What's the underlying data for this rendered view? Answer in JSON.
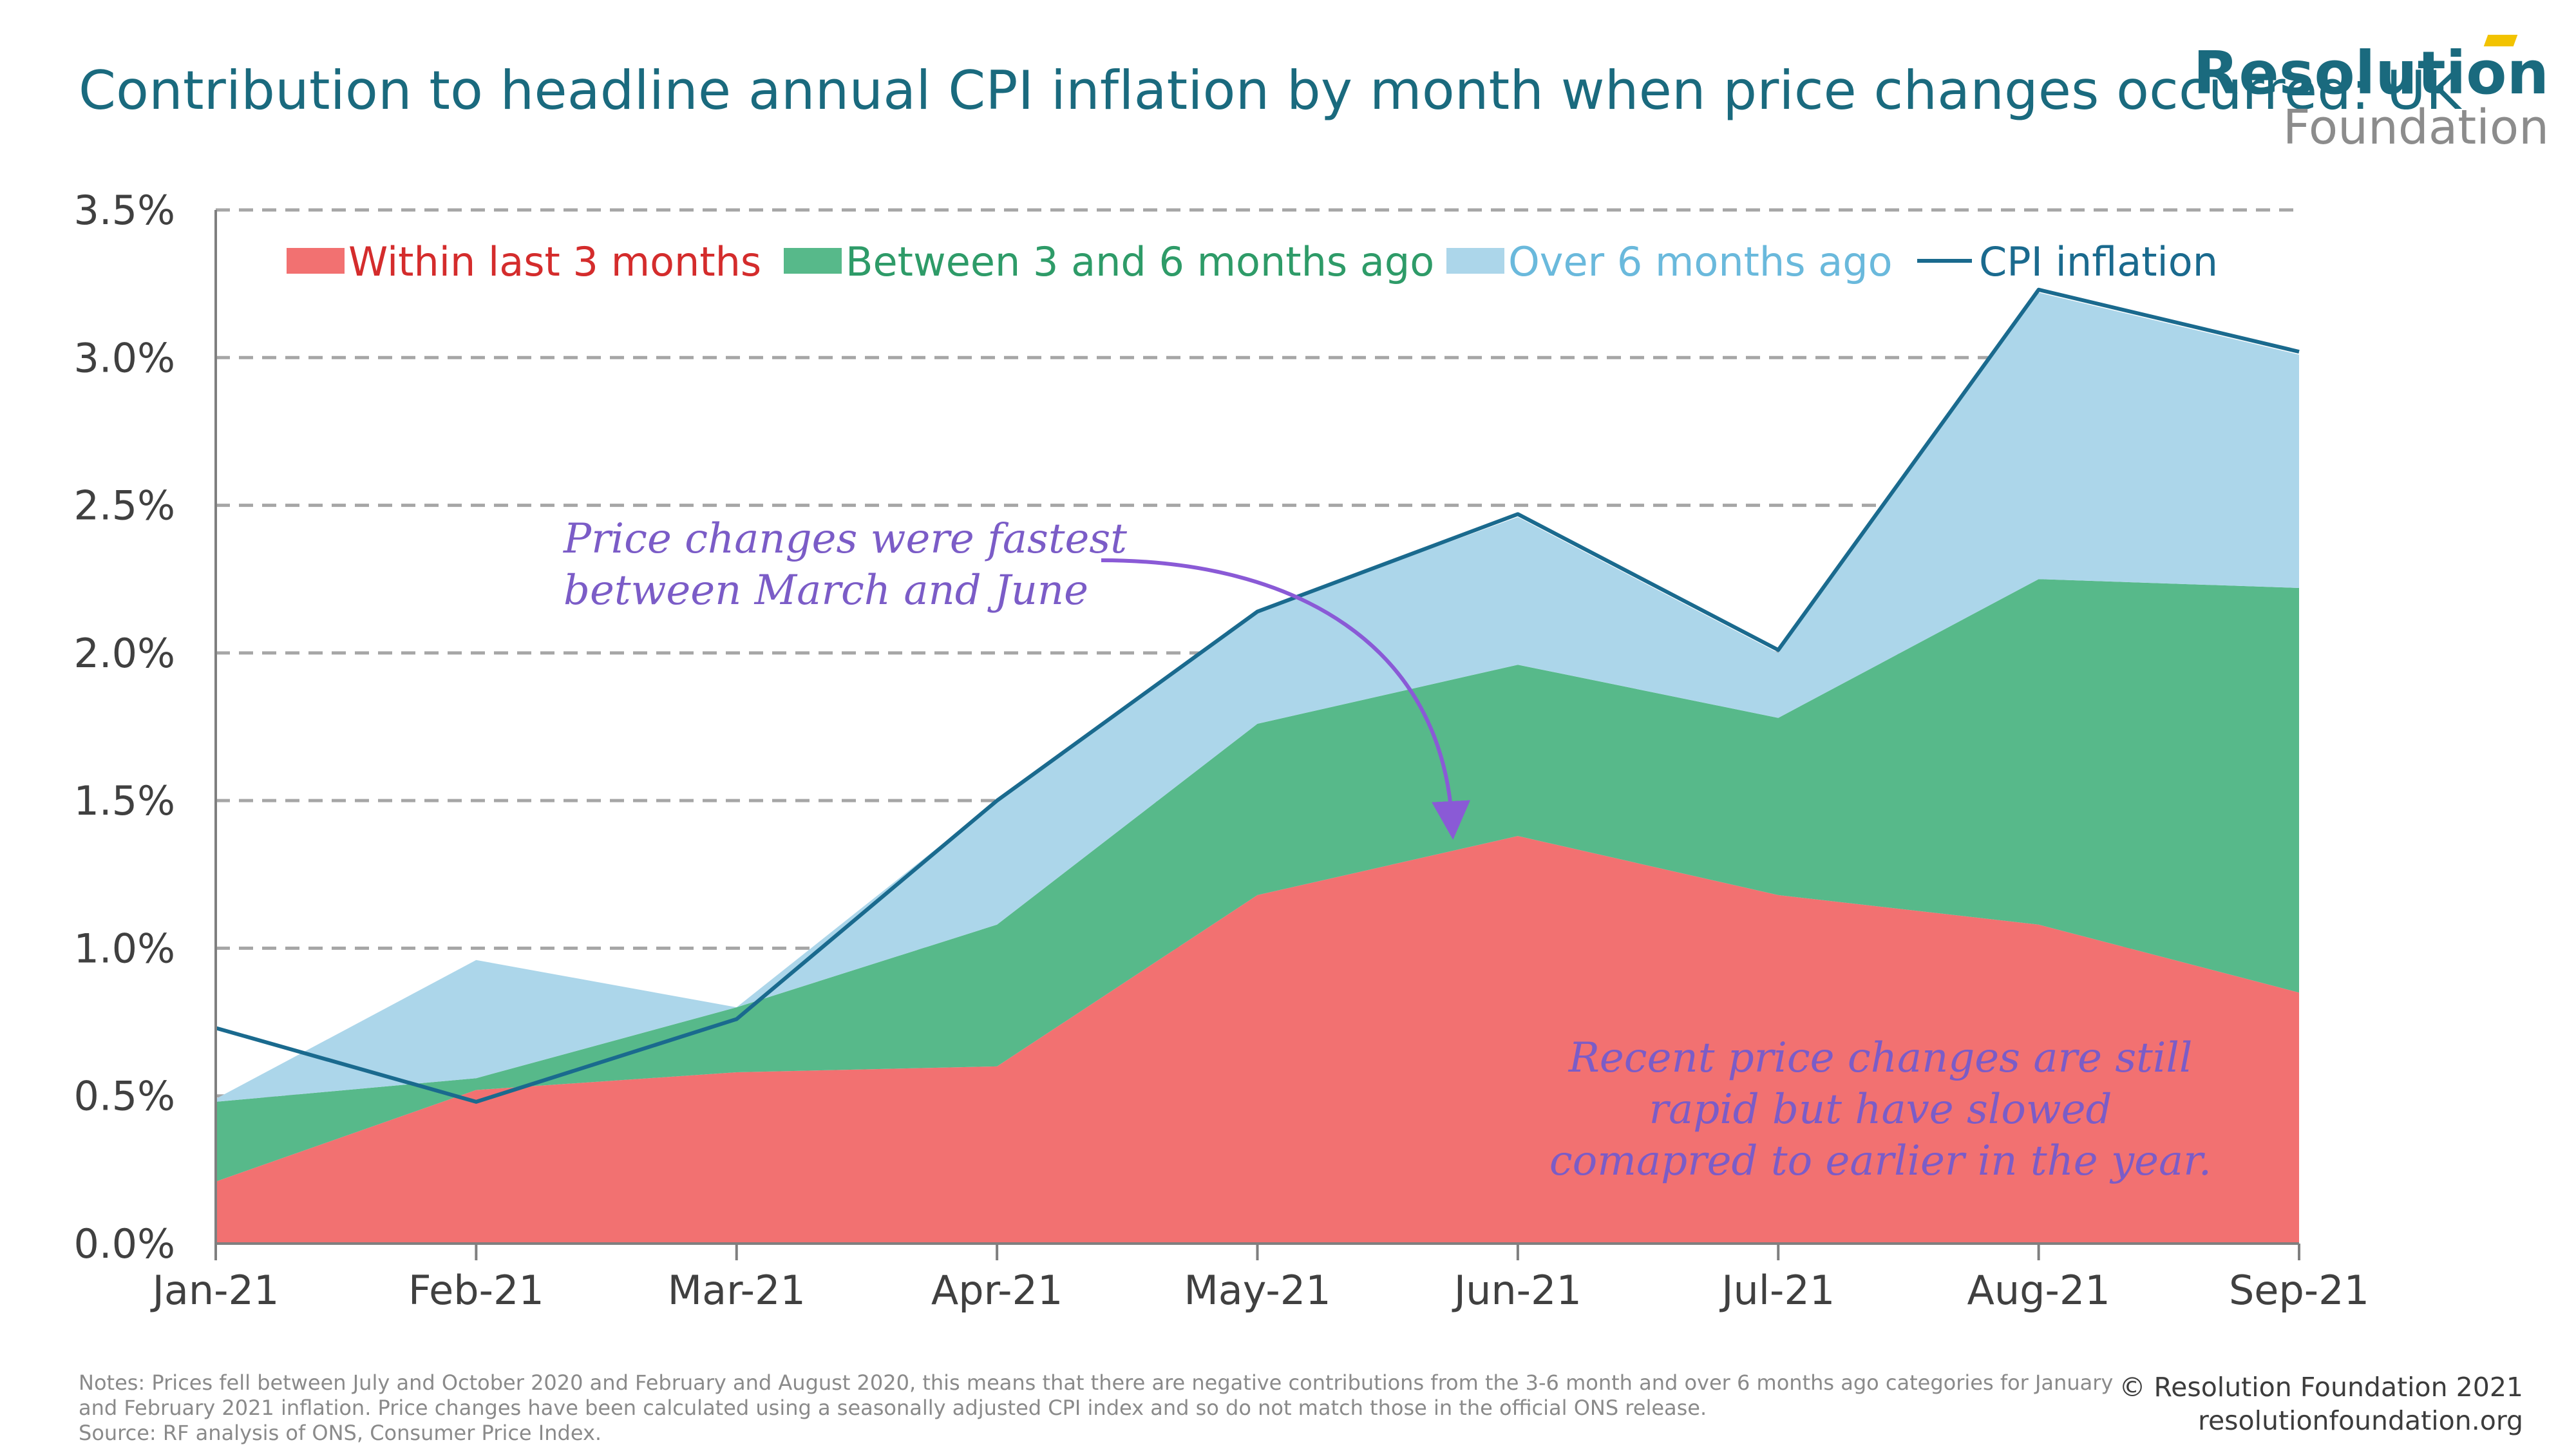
{
  "header": {
    "title": "Contribution to headline annual CPI inflation by month when price changes occurred: UK",
    "logo_main": "Resolution",
    "logo_sub": "Foundation"
  },
  "chart_data": {
    "type": "area",
    "title": "Contribution to headline annual CPI inflation by month when price changes occurred: UK",
    "xlabel": "",
    "ylabel": "",
    "categories": [
      "Jan-21",
      "Feb-21",
      "Mar-21",
      "Apr-21",
      "May-21",
      "Jun-21",
      "Jul-21",
      "Aug-21",
      "Sep-21"
    ],
    "ylim": [
      0,
      3.5
    ],
    "yticks": [
      0.0,
      0.5,
      1.0,
      1.5,
      2.0,
      2.5,
      3.0,
      3.5
    ],
    "ytick_labels": [
      "0.0%",
      "0.5%",
      "1.0%",
      "1.5%",
      "2.0%",
      "2.5%",
      "3.0%",
      "3.5%"
    ],
    "grid": "horizontal-dashed",
    "legend_position": "top",
    "series": [
      {
        "name": "Within last 3 months",
        "kind": "stacked-area",
        "color": "#f27171",
        "values": [
          0.21,
          0.52,
          0.58,
          0.6,
          1.18,
          1.38,
          1.18,
          1.08,
          0.85
        ]
      },
      {
        "name": "Between 3 and 6 months ago",
        "kind": "stacked-area",
        "color": "#57b98a",
        "values": [
          0.27,
          0.04,
          0.22,
          0.48,
          0.58,
          0.58,
          0.6,
          1.17,
          1.37
        ]
      },
      {
        "name": "Over 6 months ago",
        "kind": "stacked-area",
        "color": "#acd6ea",
        "values": [
          0.01,
          0.4,
          0.0,
          0.42,
          0.38,
          0.5,
          0.22,
          0.97,
          0.79
        ]
      },
      {
        "name": "CPI inflation",
        "kind": "line",
        "color": "#1a6a8e",
        "values": [
          0.73,
          0.48,
          0.76,
          1.5,
          2.14,
          2.47,
          2.01,
          3.23,
          3.02
        ]
      }
    ],
    "negative_overlap_color": "#8fcbd3",
    "annotations": [
      {
        "text_lines": [
          "Price changes were fastest",
          "between March and June"
        ],
        "color": "#7b5cc7"
      },
      {
        "text_lines": [
          "Recent price changes are still",
          "rapid but have slowed",
          "comapred to earlier in the year."
        ],
        "color": "#7b5cc7"
      }
    ]
  },
  "footer": {
    "notes": "Notes: Prices fell between July and October 2020 and February and August 2020, this means that there are negative contributions from the 3-6 month and over 6 months ago categories for January and February 2021 inflation. Price changes have been calculated using a seasonally adjusted CPI index and so do not match those in the official ONS release.",
    "source": "Source: RF analysis of ONS, Consumer Price Index.",
    "copyright": "© Resolution Foundation 2021",
    "website": "resolutionfoundation.org"
  }
}
